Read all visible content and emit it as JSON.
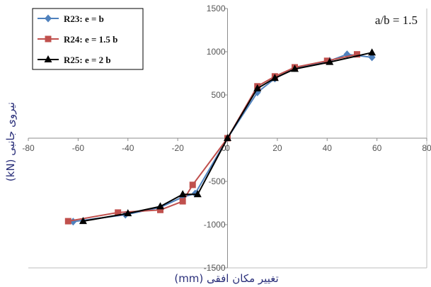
{
  "chart_data": {
    "type": "line",
    "xlabel": "تغییر مکان افقی (mm)",
    "ylabel": "نیروی جانبی (kN)",
    "annotation": "a/b = 1.5",
    "xlim": [
      -80,
      80
    ],
    "ylim": [
      -1500,
      1500
    ],
    "x_ticks": [
      -80,
      -60,
      -40,
      -20,
      0,
      20,
      40,
      60,
      80
    ],
    "y_ticks": [
      -1500,
      -1000,
      -500,
      0,
      500,
      1000,
      1500
    ],
    "grid": "none",
    "legend_position": "top-left",
    "series": [
      {
        "name": "R23: e = b",
        "color": "#4f81bd",
        "marker": "diamond",
        "points": [
          [
            -62,
            -965
          ],
          [
            -41,
            -885
          ],
          [
            -27,
            -800
          ],
          [
            -18,
            -680
          ],
          [
            -13,
            -640
          ],
          [
            0,
            0
          ],
          [
            12,
            530
          ],
          [
            19,
            690
          ],
          [
            27,
            810
          ],
          [
            41,
            895
          ],
          [
            48,
            970
          ],
          [
            58,
            935
          ]
        ]
      },
      {
        "name": "R24: e = 1.5 b",
        "color": "#c0504d",
        "marker": "square",
        "points": [
          [
            -64,
            -960
          ],
          [
            -44,
            -860
          ],
          [
            -27,
            -830
          ],
          [
            -18,
            -730
          ],
          [
            -14,
            -540
          ],
          [
            0,
            0
          ],
          [
            12,
            600
          ],
          [
            19,
            715
          ],
          [
            27,
            820
          ],
          [
            40,
            895
          ],
          [
            52,
            970
          ]
        ]
      },
      {
        "name": "R25: e = 2 b",
        "color": "#000000",
        "marker": "triangle",
        "points": [
          [
            -58,
            -960
          ],
          [
            -40,
            -870
          ],
          [
            -27,
            -790
          ],
          [
            -18,
            -650
          ],
          [
            -12,
            -650
          ],
          [
            0,
            0
          ],
          [
            12,
            575
          ],
          [
            19,
            695
          ],
          [
            27,
            800
          ],
          [
            41,
            880
          ],
          [
            58,
            990
          ]
        ]
      }
    ]
  }
}
